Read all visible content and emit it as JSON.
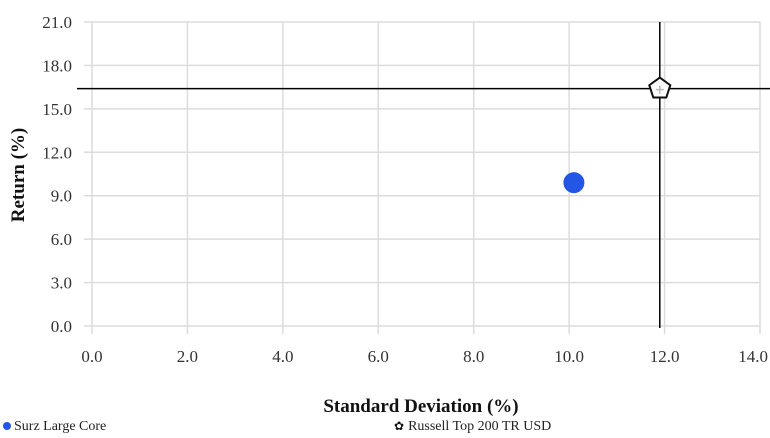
{
  "chart_data": {
    "type": "scatter",
    "xlabel": "Standard Deviation (%)",
    "ylabel": "Return (%)",
    "xlim": [
      0,
      14
    ],
    "ylim": [
      0,
      21
    ],
    "x_ticks": [
      "0.0",
      "2.0",
      "4.0",
      "6.0",
      "8.0",
      "10.0",
      "12.0",
      "14.0"
    ],
    "y_ticks": [
      "0.0",
      "3.0",
      "6.0",
      "9.0",
      "12.0",
      "15.0",
      "18.0",
      "21.0"
    ],
    "grid": true,
    "legend_position": "bottom",
    "series": [
      {
        "name": "Surz Large Core",
        "x": 10.1,
        "y": 9.9,
        "marker": "circle",
        "color": "#2456e6"
      },
      {
        "name": "Russell Top 200 TR USD",
        "x": 11.9,
        "y": 16.4,
        "marker": "pentagon",
        "color": "#111111"
      }
    ],
    "crosshair": {
      "x": 11.9,
      "y": 16.4,
      "color": "#000000"
    }
  }
}
